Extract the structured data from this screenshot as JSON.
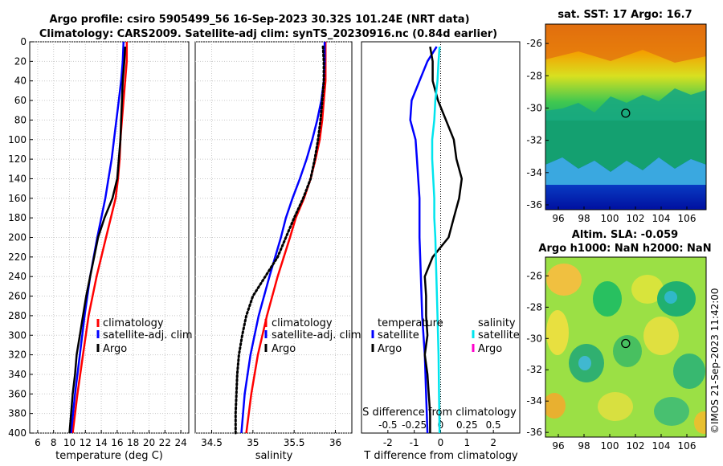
{
  "title": {
    "line1": "Argo profile: csiro 5905499_56 16-Sep-2023 30.32S 101.24E (NRT data)",
    "line2": "Climatology: CARS2009. Satellite-adj clim: synTS_20230916.nc (0.84d earlier)"
  },
  "side_label": "©IMOS 21-Sep-2023 11:42:00",
  "chart_data": [
    {
      "type": "line",
      "panel": "temperature",
      "xlabel": "temperature (deg C)",
      "xlim": [
        5,
        25
      ],
      "xticks": [
        6,
        8,
        10,
        12,
        14,
        16,
        18,
        20,
        22,
        24
      ],
      "ylim": [
        0,
        400
      ],
      "yticks": [
        0,
        20,
        40,
        60,
        80,
        100,
        120,
        140,
        160,
        180,
        200,
        220,
        240,
        260,
        280,
        300,
        320,
        340,
        360,
        380,
        400
      ],
      "grid": true,
      "legend": [
        "climatology",
        "satellite-adj. clim",
        "Argo"
      ],
      "series": [
        {
          "name": "climatology",
          "color": "#ff0000",
          "style": "solid",
          "depth": [
            0,
            20,
            40,
            60,
            80,
            100,
            120,
            140,
            160,
            180,
            200,
            240,
            280,
            320,
            360,
            400
          ],
          "values": [
            17.2,
            17.2,
            17.0,
            16.8,
            16.6,
            16.4,
            16.3,
            16.1,
            15.8,
            15.2,
            14.6,
            13.4,
            12.4,
            11.7,
            11.0,
            10.4
          ]
        },
        {
          "name": "satellite-adj. clim",
          "color": "#0000ff",
          "style": "solid",
          "depth": [
            0,
            20,
            40,
            60,
            80,
            100,
            120,
            140,
            160,
            180,
            200,
            240,
            280,
            320,
            360,
            400
          ],
          "values": [
            16.8,
            16.7,
            16.5,
            16.2,
            15.9,
            15.6,
            15.3,
            14.9,
            14.5,
            14.0,
            13.5,
            12.6,
            11.9,
            11.3,
            10.7,
            10.2
          ]
        },
        {
          "name": "Argo",
          "color": "#000000",
          "style": "solid",
          "depth": [
            5,
            20,
            40,
            60,
            80,
            100,
            120,
            140,
            160,
            180,
            200,
            220,
            240,
            260,
            280,
            300,
            320,
            340,
            360,
            380,
            400
          ],
          "values": [
            17.0,
            16.9,
            16.7,
            16.6,
            16.5,
            16.4,
            16.2,
            16.0,
            15.4,
            14.4,
            13.6,
            13.1,
            12.6,
            12.1,
            11.7,
            11.3,
            10.9,
            10.7,
            10.4,
            10.2,
            10.0
          ]
        }
      ]
    },
    {
      "type": "line",
      "panel": "salinity",
      "xlabel": "salinity",
      "xlim": [
        34.3,
        36.2
      ],
      "xticks": [
        34.5,
        35,
        35.5,
        36
      ],
      "xticklabels": [
        "34.5",
        "35",
        "35.5",
        "36"
      ],
      "ylim": [
        0,
        400
      ],
      "grid": true,
      "legend": [
        "climatology",
        "satellite-adj. clim",
        "Argo"
      ],
      "series": [
        {
          "name": "climatology",
          "color": "#ff0000",
          "style": "solid",
          "depth": [
            0,
            20,
            40,
            60,
            80,
            100,
            120,
            140,
            160,
            180,
            200,
            240,
            280,
            320,
            360,
            400
          ],
          "values": [
            35.88,
            35.88,
            35.88,
            35.86,
            35.84,
            35.81,
            35.76,
            35.7,
            35.62,
            35.52,
            35.45,
            35.3,
            35.17,
            35.06,
            34.98,
            34.92
          ]
        },
        {
          "name": "satellite-adj. clim",
          "color": "#0000ff",
          "style": "solid",
          "depth": [
            0,
            20,
            40,
            60,
            80,
            100,
            120,
            140,
            160,
            180,
            200,
            240,
            280,
            320,
            360,
            400
          ],
          "values": [
            35.87,
            35.87,
            35.86,
            35.83,
            35.78,
            35.72,
            35.65,
            35.57,
            35.48,
            35.4,
            35.34,
            35.2,
            35.07,
            34.97,
            34.9,
            34.86
          ]
        },
        {
          "name": "Argo",
          "color": "#000000",
          "style": "dotted",
          "depth": [
            5,
            20,
            40,
            60,
            80,
            100,
            120,
            140,
            160,
            180,
            200,
            220,
            240,
            260,
            280,
            300,
            320,
            340,
            360,
            380,
            400
          ],
          "values": [
            35.85,
            35.86,
            35.86,
            35.84,
            35.82,
            35.79,
            35.75,
            35.7,
            35.61,
            35.5,
            35.4,
            35.3,
            35.15,
            35.0,
            34.92,
            34.87,
            34.83,
            34.81,
            34.8,
            34.79,
            34.79
          ]
        }
      ]
    },
    {
      "type": "line",
      "panel": "difference",
      "xlabel": "T difference from climatology",
      "xlabel_top": "S difference from climatology",
      "xlim": [
        -3,
        3
      ],
      "xticks": [
        -2,
        -1,
        0,
        1,
        2
      ],
      "xticklabels": [
        "-2",
        "-1",
        "0",
        "1",
        "2"
      ],
      "sticks": [
        -0.5,
        -0.25,
        0,
        0.25,
        0.5
      ],
      "sticklabels": [
        "-0.5",
        "-0.25",
        "0",
        "0.25",
        "0.5"
      ],
      "ylim": [
        0,
        400
      ],
      "legend_temperature": [
        "temperature",
        "satellite",
        "Argo"
      ],
      "legend_salinity": [
        "salinity",
        "satellite",
        "Argo"
      ],
      "series": [
        {
          "name": "temperature satellite",
          "color": "#0000ff",
          "style": "solid",
          "depth": [
            5,
            20,
            40,
            60,
            80,
            100,
            120,
            140,
            160,
            200,
            240,
            280,
            320,
            360,
            400
          ],
          "values": [
            -0.15,
            -0.5,
            -0.8,
            -1.1,
            -1.15,
            -0.95,
            -0.9,
            -0.85,
            -0.8,
            -0.8,
            -0.75,
            -0.7,
            -0.6,
            -0.55,
            -0.5
          ]
        },
        {
          "name": "temperature Argo",
          "color": "#000000",
          "style": "solid",
          "depth": [
            5,
            20,
            40,
            60,
            80,
            100,
            120,
            140,
            160,
            180,
            200,
            220,
            240,
            260,
            280,
            300,
            320,
            340,
            360,
            380,
            400
          ],
          "values": [
            -0.4,
            -0.3,
            -0.3,
            -0.1,
            0.2,
            0.5,
            0.6,
            0.8,
            0.7,
            0.5,
            0.3,
            -0.3,
            -0.6,
            -0.55,
            -0.55,
            -0.5,
            -0.6,
            -0.5,
            -0.45,
            -0.4,
            -0.4
          ]
        },
        {
          "name": "salinity satellite",
          "color": "#00e5ee",
          "style": "solid",
          "depth": [
            5,
            20,
            40,
            60,
            80,
            100,
            120,
            140,
            160,
            180,
            200,
            240,
            280,
            320,
            360,
            400
          ],
          "values": [
            -0.01,
            -0.02,
            -0.03,
            -0.05,
            -0.06,
            -0.08,
            -0.08,
            -0.07,
            -0.06,
            -0.06,
            -0.05,
            -0.04,
            -0.03,
            -0.02,
            -0.015,
            -0.01
          ]
        }
      ]
    },
    {
      "type": "heatmap",
      "panel": "sat-sst-map",
      "title": "sat. SST: 17 Argo: 16.7",
      "xticks": [
        96,
        98,
        100,
        102,
        104,
        106
      ],
      "yticks": [
        -26,
        -28,
        -30,
        -32,
        -34,
        -36
      ],
      "xlim": [
        95,
        107.5
      ],
      "ylim": [
        -36.3,
        -24.8
      ],
      "marker": {
        "lon": 101.24,
        "lat": -30.32
      }
    },
    {
      "type": "heatmap",
      "panel": "altimetry-sla-map",
      "title": "Altim. SLA: -0.059",
      "subtitle": "Argo h1000: NaN h2000: NaN",
      "xticks": [
        96,
        98,
        100,
        102,
        104,
        106
      ],
      "yticks": [
        -26,
        -28,
        -30,
        -32,
        -34,
        -36
      ],
      "xlim": [
        95,
        107.5
      ],
      "ylim": [
        -36.3,
        -24.8
      ],
      "marker": {
        "lon": 101.24,
        "lat": -30.32
      }
    }
  ]
}
